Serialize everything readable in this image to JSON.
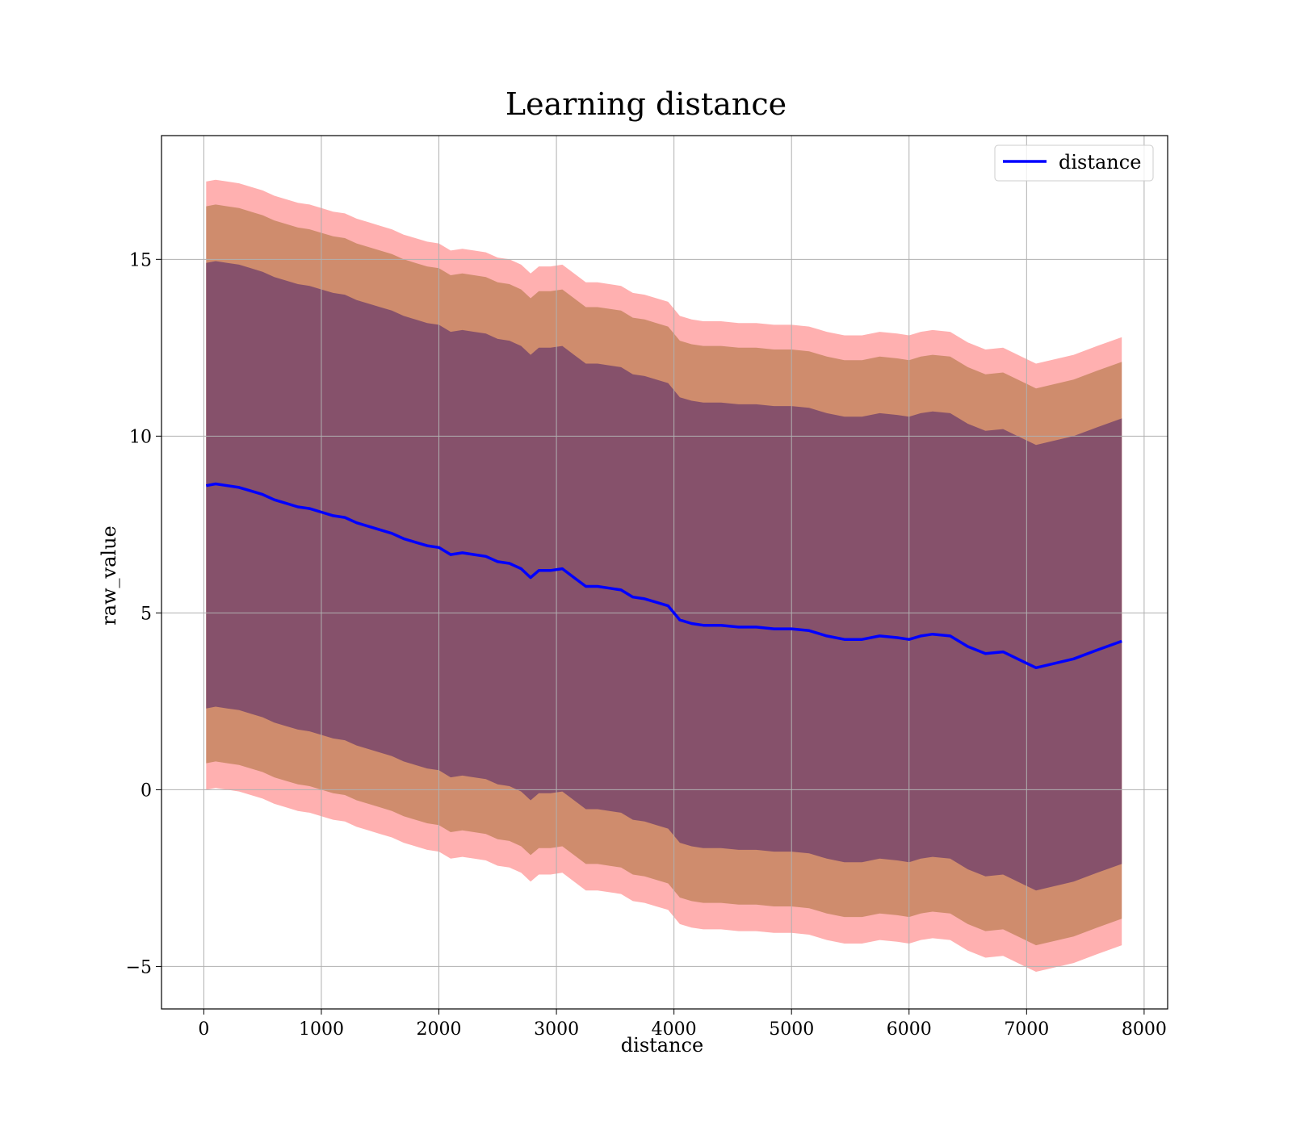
{
  "chart_data": {
    "type": "line",
    "title": "Learning distance",
    "xlabel": "distance",
    "ylabel": "raw_value",
    "xlim": [
      -360,
      8200
    ],
    "ylim": [
      -6.2,
      18.5
    ],
    "x_ticks": [
      0,
      1000,
      2000,
      3000,
      4000,
      5000,
      6000,
      7000,
      8000
    ],
    "x_tick_labels": [
      "0",
      "1000",
      "2000",
      "3000",
      "4000",
      "5000",
      "6000",
      "7000",
      "8000"
    ],
    "y_ticks": [
      -5,
      0,
      5,
      10,
      15
    ],
    "y_tick_labels": [
      "−5",
      "0",
      "5",
      "10",
      "15"
    ],
    "grid": true,
    "legend": {
      "position": "top-right",
      "entries": [
        "distance"
      ]
    },
    "colors": {
      "line": "#0000ff",
      "band_outer": "#ff6f6f",
      "band_middle": "#b57a4a",
      "band_inner": "#7d4a6a"
    },
    "series": [
      {
        "name": "distance",
        "x": [
          20,
          100,
          200,
          300,
          400,
          500,
          600,
          700,
          800,
          900,
          1000,
          1100,
          1200,
          1300,
          1400,
          1500,
          1600,
          1700,
          1800,
          1900,
          2000,
          2100,
          2200,
          2300,
          2400,
          2500,
          2600,
          2700,
          2780,
          2850,
          2950,
          3050,
          3150,
          3250,
          3350,
          3450,
          3550,
          3650,
          3750,
          3850,
          3950,
          4050,
          4150,
          4250,
          4400,
          4550,
          4700,
          4850,
          5000,
          5150,
          5300,
          5450,
          5600,
          5750,
          5900,
          6000,
          6100,
          6200,
          6350,
          6500,
          6650,
          6800,
          7080,
          7400,
          7600,
          7810
        ],
        "y": [
          8.6,
          8.65,
          8.6,
          8.55,
          8.45,
          8.35,
          8.2,
          8.1,
          8.0,
          7.95,
          7.85,
          7.75,
          7.7,
          7.55,
          7.45,
          7.35,
          7.25,
          7.1,
          7.0,
          6.9,
          6.85,
          6.65,
          6.7,
          6.65,
          6.6,
          6.45,
          6.4,
          6.25,
          6.0,
          6.2,
          6.2,
          6.25,
          6.0,
          5.75,
          5.75,
          5.7,
          5.65,
          5.45,
          5.4,
          5.3,
          5.2,
          4.8,
          4.7,
          4.65,
          4.65,
          4.6,
          4.6,
          4.55,
          4.55,
          4.5,
          4.35,
          4.25,
          4.25,
          4.35,
          4.3,
          4.25,
          4.35,
          4.4,
          4.35,
          4.05,
          3.85,
          3.9,
          3.45,
          3.7,
          3.95,
          4.2
        ]
      }
    ],
    "bands": [
      {
        "name": "outer",
        "lower_offset": -8.6,
        "upper_offset": 8.6
      },
      {
        "name": "middle",
        "lower_offset": -7.85,
        "upper_offset": 7.9
      },
      {
        "name": "inner",
        "lower_offset": -6.3,
        "upper_offset": 6.3
      }
    ]
  }
}
